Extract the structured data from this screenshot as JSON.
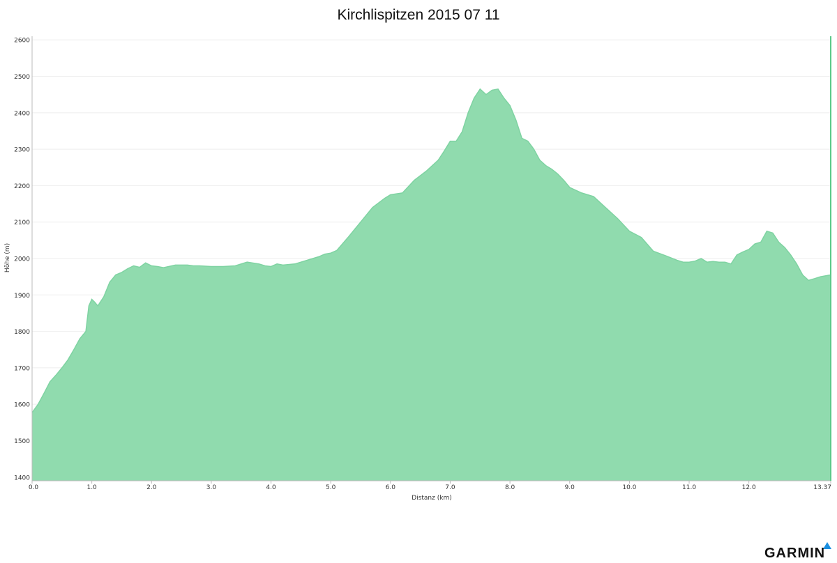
{
  "chart_data": {
    "type": "area",
    "title": "Kirchlispitzen 2015 07 11",
    "xlabel": "Distanz   (km)",
    "ylabel": "Höhe (m)",
    "xlim": [
      0,
      13.37
    ],
    "ylim": [
      1390,
      2610
    ],
    "x_ticks": [
      "0.0",
      "1.0",
      "2.0",
      "3.0",
      "4.0",
      "5.0",
      "6.0",
      "7.0",
      "8.0",
      "9.0",
      "10.0",
      "11.0",
      "12.0",
      "13.37"
    ],
    "y_ticks": [
      "2600",
      "2500",
      "2400",
      "2300",
      "2200",
      "2100",
      "2000",
      "1900",
      "1800",
      "1700",
      "1600",
      "1500",
      "1400"
    ],
    "fill_color": "#90dbae",
    "line_color": "#7fd3a2",
    "grid": true,
    "x": [
      0.0,
      0.1,
      0.2,
      0.3,
      0.4,
      0.5,
      0.6,
      0.7,
      0.8,
      0.9,
      0.95,
      1.0,
      1.05,
      1.1,
      1.2,
      1.3,
      1.4,
      1.5,
      1.6,
      1.7,
      1.8,
      1.9,
      2.0,
      2.1,
      2.2,
      2.4,
      2.6,
      2.7,
      2.8,
      3.0,
      3.2,
      3.4,
      3.6,
      3.8,
      3.9,
      4.0,
      4.1,
      4.2,
      4.4,
      4.6,
      4.8,
      4.9,
      5.0,
      5.1,
      5.3,
      5.5,
      5.7,
      5.9,
      6.0,
      6.2,
      6.4,
      6.6,
      6.8,
      6.9,
      7.0,
      7.1,
      7.2,
      7.3,
      7.4,
      7.5,
      7.6,
      7.7,
      7.8,
      7.9,
      8.0,
      8.1,
      8.2,
      8.3,
      8.4,
      8.5,
      8.6,
      8.7,
      8.8,
      8.9,
      9.0,
      9.2,
      9.4,
      9.6,
      9.8,
      10.0,
      10.2,
      10.4,
      10.6,
      10.8,
      10.9,
      11.0,
      11.1,
      11.2,
      11.3,
      11.4,
      11.5,
      11.6,
      11.7,
      11.8,
      11.9,
      12.0,
      12.1,
      12.2,
      12.3,
      12.4,
      12.5,
      12.6,
      12.7,
      12.8,
      12.9,
      13.0,
      13.1,
      13.2,
      13.37
    ],
    "y": [
      1577,
      1600,
      1630,
      1662,
      1680,
      1700,
      1722,
      1750,
      1780,
      1800,
      1870,
      1888,
      1880,
      1870,
      1895,
      1935,
      1955,
      1962,
      1972,
      1980,
      1976,
      1988,
      1980,
      1978,
      1975,
      1982,
      1982,
      1980,
      1980,
      1978,
      1978,
      1980,
      1990,
      1985,
      1980,
      1978,
      1985,
      1982,
      1985,
      1995,
      2005,
      2012,
      2015,
      2022,
      2060,
      2100,
      2140,
      2165,
      2175,
      2180,
      2215,
      2240,
      2270,
      2295,
      2322,
      2322,
      2348,
      2400,
      2440,
      2465,
      2450,
      2462,
      2465,
      2440,
      2420,
      2380,
      2330,
      2322,
      2300,
      2270,
      2255,
      2245,
      2232,
      2215,
      2195,
      2180,
      2170,
      2140,
      2110,
      2075,
      2058,
      2020,
      2008,
      1995,
      1990,
      1990,
      1993,
      2000,
      1990,
      1992,
      1990,
      1990,
      1985,
      2010,
      2018,
      2025,
      2040,
      2045,
      2075,
      2070,
      2045,
      2030,
      2010,
      1985,
      1955,
      1940,
      1945,
      1950,
      1955
    ]
  },
  "branding": {
    "logo_text": "GARMIN"
  }
}
